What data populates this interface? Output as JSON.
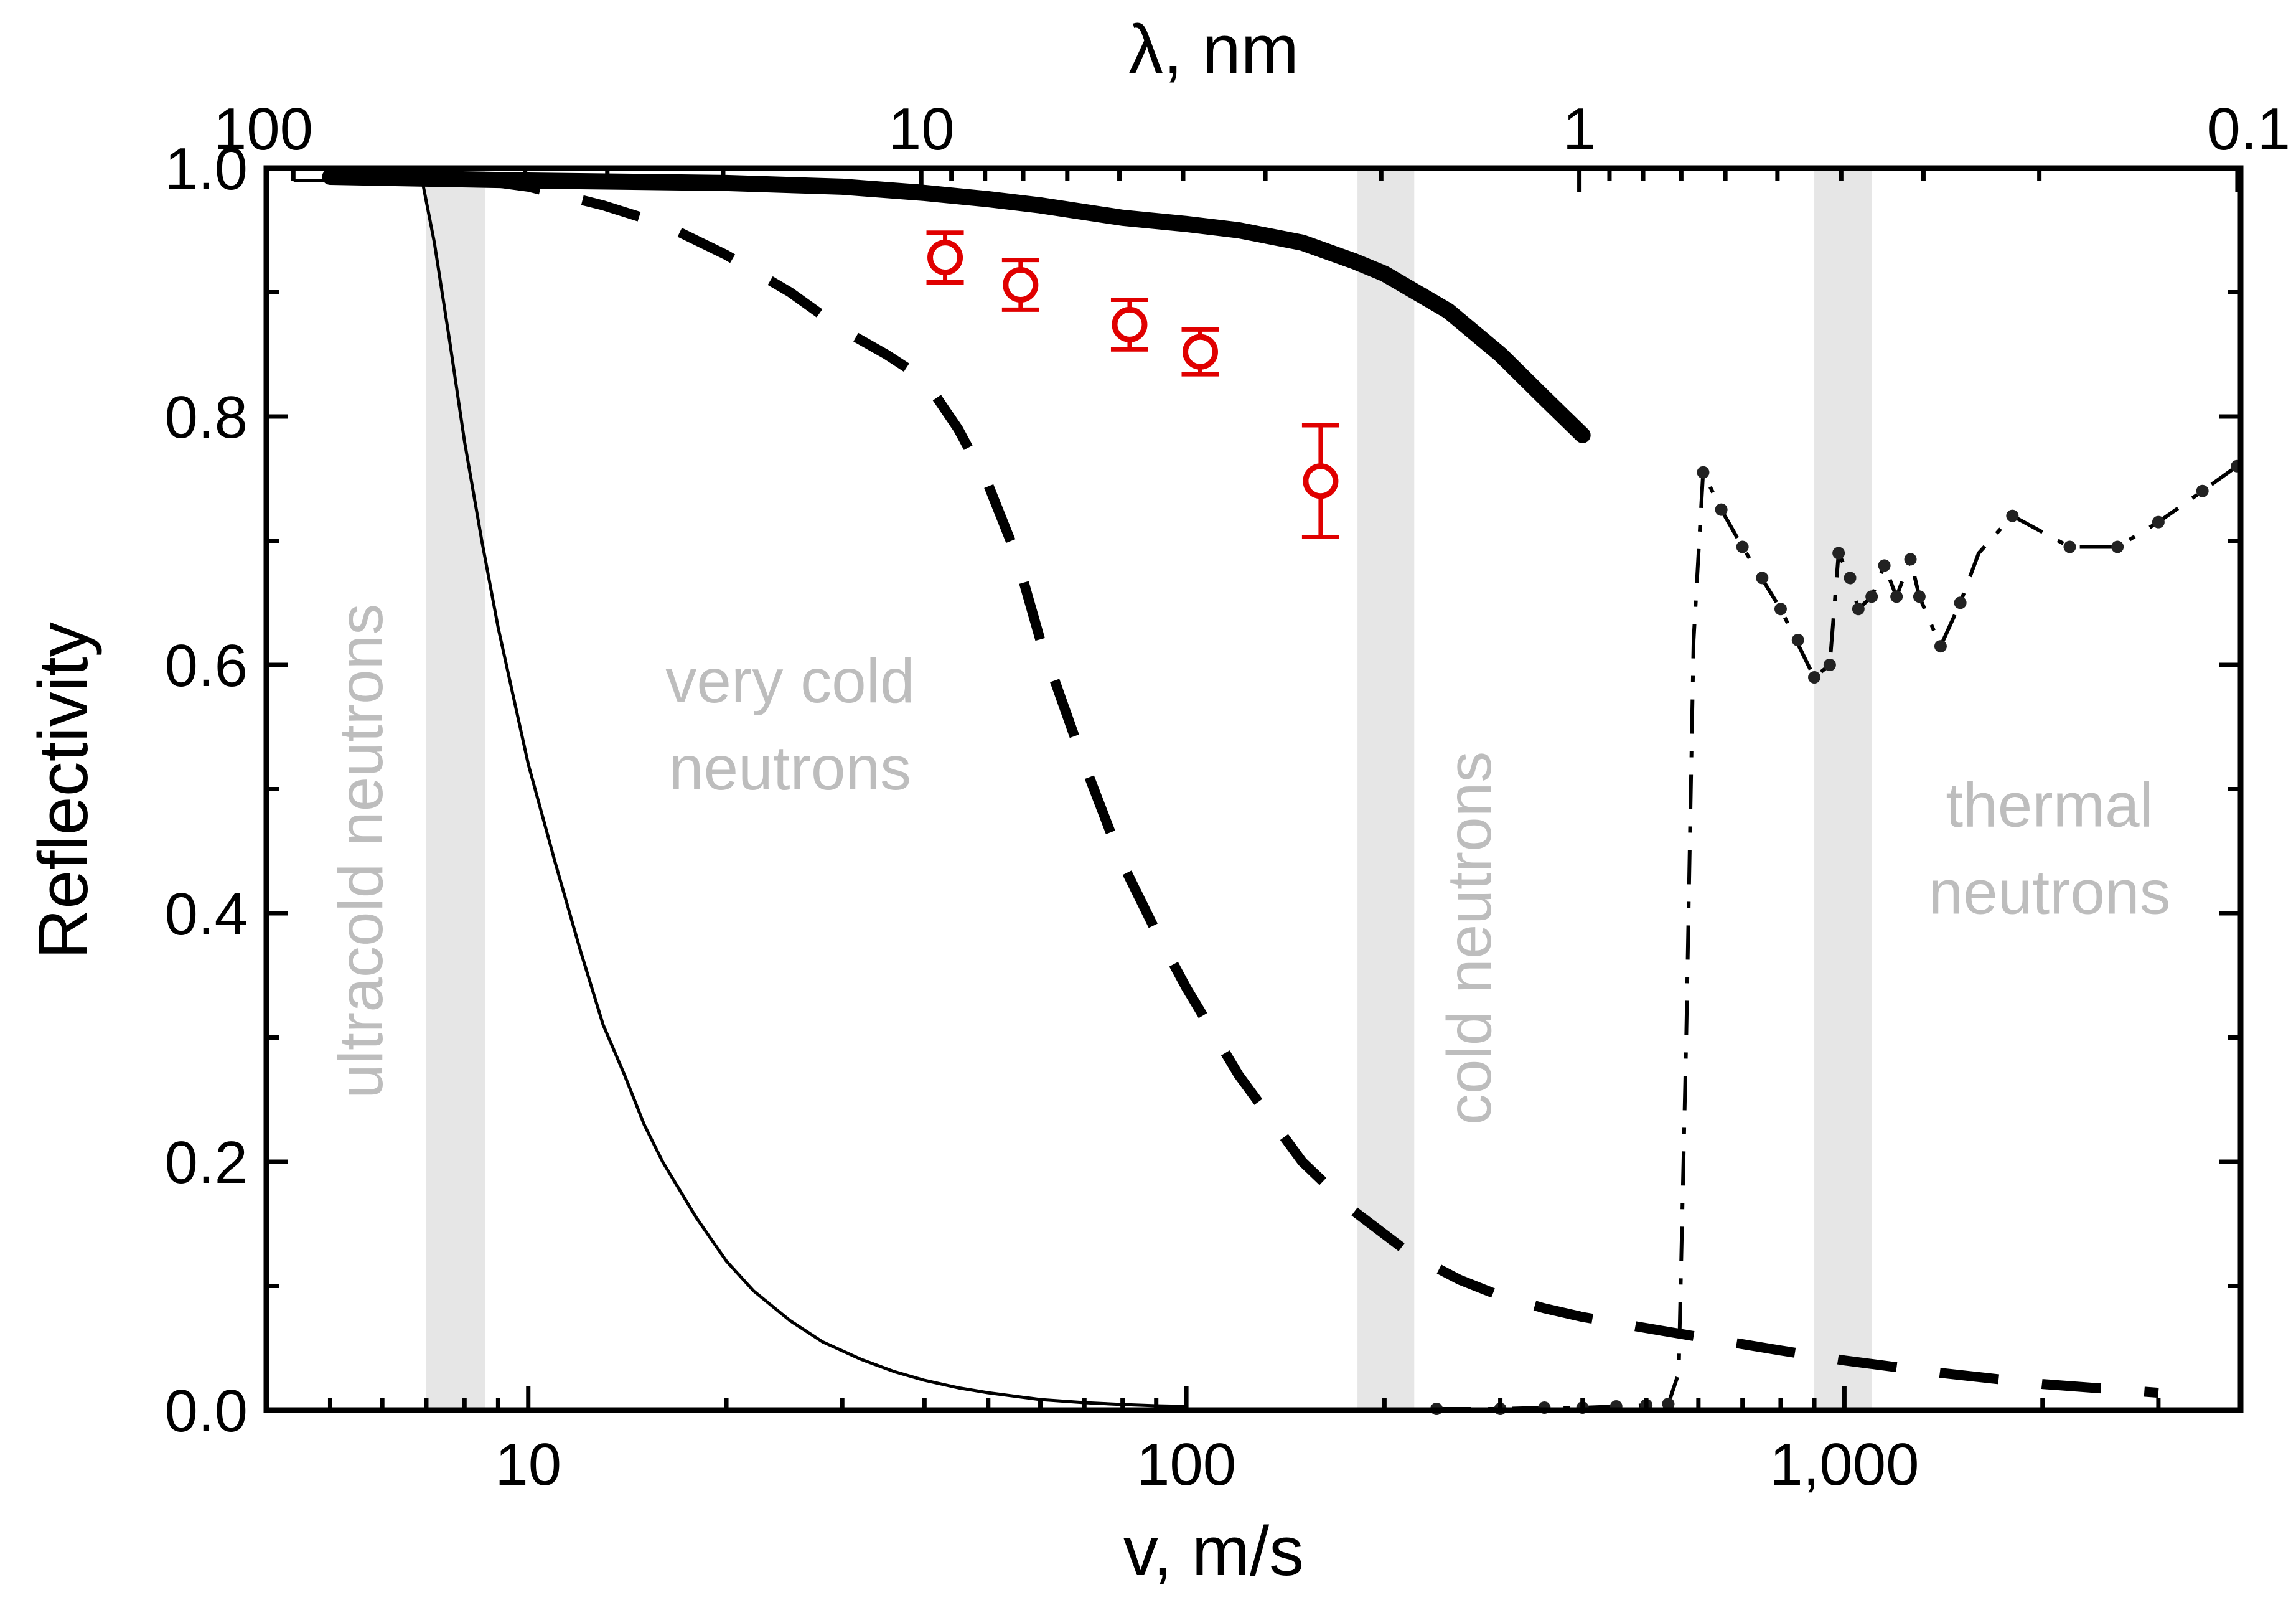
{
  "chart_data": {
    "type": "line",
    "title": "",
    "xlabel": "v, m/s",
    "ylabel": "Reflectivity",
    "x2label": "λ, nm",
    "xscale": "log",
    "xlim": [
      4,
      4000
    ],
    "ylim": [
      0,
      1
    ],
    "yticks": [
      {
        "value": 0.0,
        "label": "0.0"
      },
      {
        "value": 0.2,
        "label": "0.2"
      },
      {
        "value": 0.4,
        "label": "0.4"
      },
      {
        "value": 0.6,
        "label": "0.6"
      },
      {
        "value": 0.8,
        "label": "0.8"
      },
      {
        "value": 1.0,
        "label": "1.0"
      }
    ],
    "xticks": [
      {
        "value": 10,
        "label": "10"
      },
      {
        "value": 100,
        "label": "100"
      },
      {
        "value": 1000,
        "label": "1,000"
      }
    ],
    "x2ticks": [
      {
        "value": 3.956,
        "label": "100"
      },
      {
        "value": 39.56,
        "label": "10"
      },
      {
        "value": 395.6,
        "label": "1"
      },
      {
        "value": 3956,
        "label": "0.1"
      }
    ],
    "bands": [
      {
        "name": "ucn-vcn-boundary",
        "from": 7.0,
        "to": 8.6
      },
      {
        "name": "vcn-cn-boundary",
        "from": 182,
        "to": 222
      },
      {
        "name": "cn-thermal-boundary",
        "from": 900,
        "to": 1100
      }
    ],
    "region_labels": [
      {
        "name": "ultracold",
        "lines": [
          "ultracold neutrons"
        ],
        "x": 6.0,
        "y": 0.45,
        "rotate": -90
      },
      {
        "name": "very-cold",
        "lines": [
          "very cold",
          "neutrons"
        ],
        "x": 25,
        "y": 0.57,
        "rotate": 0
      },
      {
        "name": "cold",
        "lines": [
          "cold neutrons"
        ],
        "x": 290,
        "y": 0.38,
        "rotate": -90
      },
      {
        "name": "thermal",
        "lines": [
          "thermal",
          "neutrons"
        ],
        "x": 2050,
        "y": 0.47,
        "rotate": 0
      }
    ],
    "series": [
      {
        "name": "thin-solid",
        "style": "thin",
        "x": [
          4.4,
          6.0,
          6.9,
          7.2,
          7.6,
          8.0,
          8.5,
          9.0,
          10,
          11,
          12,
          13,
          14,
          15,
          16,
          18,
          20,
          22,
          25,
          28,
          32,
          36,
          40,
          45,
          50,
          60,
          70,
          80,
          90,
          100
        ],
        "values": [
          0.99,
          0.99,
          0.99,
          0.94,
          0.86,
          0.78,
          0.7,
          0.63,
          0.52,
          0.44,
          0.37,
          0.31,
          0.27,
          0.23,
          0.2,
          0.155,
          0.12,
          0.096,
          0.072,
          0.055,
          0.041,
          0.031,
          0.024,
          0.018,
          0.014,
          0.0085,
          0.006,
          0.0045,
          0.0035,
          0.003
        ]
      },
      {
        "name": "thick-solid",
        "style": "thick",
        "x": [
          5,
          10,
          20,
          30,
          40,
          50,
          60,
          80,
          100,
          120,
          150,
          180,
          200,
          250,
          300,
          350,
          400
        ],
        "values": [
          0.993,
          0.99,
          0.988,
          0.985,
          0.98,
          0.975,
          0.97,
          0.96,
          0.955,
          0.95,
          0.94,
          0.925,
          0.915,
          0.885,
          0.85,
          0.815,
          0.785
        ]
      },
      {
        "name": "dashed",
        "style": "dashed",
        "x": [
          8.5,
          10,
          13,
          16,
          20,
          25,
          30,
          35,
          40,
          45,
          50,
          55,
          60,
          70,
          80,
          90,
          100,
          120,
          150,
          180,
          220,
          260,
          300,
          350,
          400,
          500,
          600,
          800,
          1000,
          1400,
          2000,
          3000
        ],
        "values": [
          0.99,
          0.985,
          0.97,
          0.955,
          0.93,
          0.9,
          0.87,
          0.85,
          0.83,
          0.79,
          0.745,
          0.69,
          0.62,
          0.52,
          0.44,
          0.385,
          0.34,
          0.27,
          0.2,
          0.16,
          0.125,
          0.105,
          0.092,
          0.082,
          0.075,
          0.066,
          0.059,
          0.048,
          0.04,
          0.03,
          0.021,
          0.014
        ]
      },
      {
        "name": "dash-dot",
        "style": "dashdot",
        "x": [
          240,
          300,
          350,
          400,
          450,
          500,
          540,
          560,
          575,
          590,
          610,
          650,
          700,
          800,
          900,
          950,
          980,
          1020,
          1050,
          1100,
          1150,
          1200,
          1260,
          1300,
          1400,
          1500,
          1600,
          1800,
          2200,
          2600,
          3000,
          3500,
          3950
        ],
        "values": [
          0.001,
          0.001,
          0.002,
          0.002,
          0.003,
          0.004,
          0.005,
          0.03,
          0.3,
          0.62,
          0.755,
          0.725,
          0.695,
          0.645,
          0.59,
          0.6,
          0.69,
          0.67,
          0.645,
          0.655,
          0.68,
          0.655,
          0.685,
          0.655,
          0.615,
          0.65,
          0.69,
          0.72,
          0.695,
          0.695,
          0.715,
          0.74,
          0.76
        ]
      }
    ],
    "markers_series": {
      "name": "dash-dot-dots",
      "x": [
        610,
        650,
        700,
        750,
        800,
        850,
        900,
        950,
        980,
        1020,
        1050,
        1100,
        1150,
        1200,
        1260,
        1300,
        1400,
        1500,
        1800,
        2200,
        2600,
        3000,
        3500,
        3950,
        240,
        300,
        350,
        400,
        450,
        500,
        540
      ],
      "values": [
        0.755,
        0.725,
        0.695,
        0.67,
        0.645,
        0.62,
        0.59,
        0.6,
        0.69,
        0.67,
        0.645,
        0.655,
        0.68,
        0.655,
        0.685,
        0.655,
        0.615,
        0.65,
        0.72,
        0.695,
        0.695,
        0.715,
        0.74,
        0.76,
        0.001,
        0.001,
        0.002,
        0.002,
        0.003,
        0.004,
        0.005
      ]
    },
    "experimental": {
      "name": "measured",
      "color": "#e00000",
      "x": [
        43,
        56,
        82,
        105,
        160
      ],
      "values": [
        0.928,
        0.906,
        0.874,
        0.852,
        0.748
      ],
      "errors": [
        0.02,
        0.02,
        0.02,
        0.018,
        0.045
      ]
    }
  }
}
